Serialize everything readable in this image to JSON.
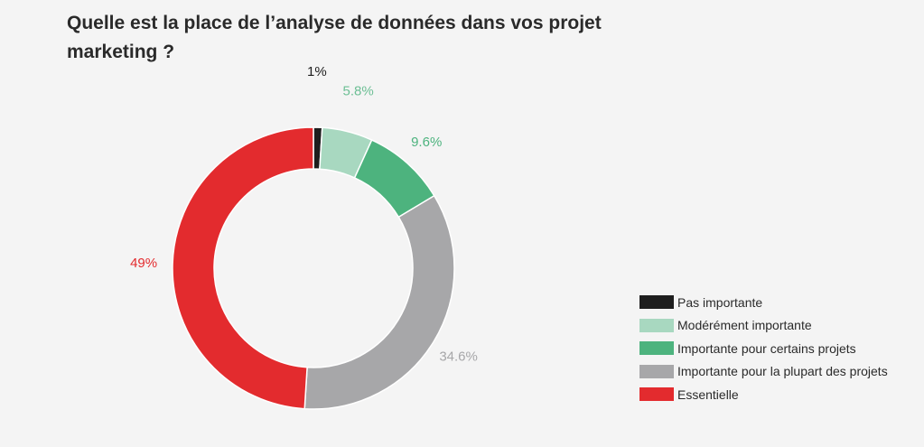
{
  "title": "Quelle est la place de l’analyse de données dans vos projet marketing ?",
  "chart_data": {
    "type": "pie",
    "donut": true,
    "title": "Quelle est la place de l’analyse de données dans vos projet marketing ?",
    "legend_position": "bottom-right",
    "slices": [
      {
        "label": "Pas importante",
        "value": 1,
        "display": "1%",
        "color": "#1e1e1e",
        "label_color": "#1e1e1e"
      },
      {
        "label": "Modérément importante",
        "value": 5.8,
        "display": "5.8%",
        "color": "#a8d8c0",
        "label_color": "#6dbf95"
      },
      {
        "label": "Importante pour certains projets",
        "value": 9.6,
        "display": "9.6%",
        "color": "#4db37e",
        "label_color": "#4db37e"
      },
      {
        "label": "Importante pour la plupart des projets",
        "value": 34.6,
        "display": "34.6%",
        "color": "#a7a7a9",
        "label_color": "#a7a7a9"
      },
      {
        "label": "Essentielle",
        "value": 49,
        "display": "49%",
        "color": "#e32b2e",
        "label_color": "#e32b2e"
      }
    ]
  }
}
